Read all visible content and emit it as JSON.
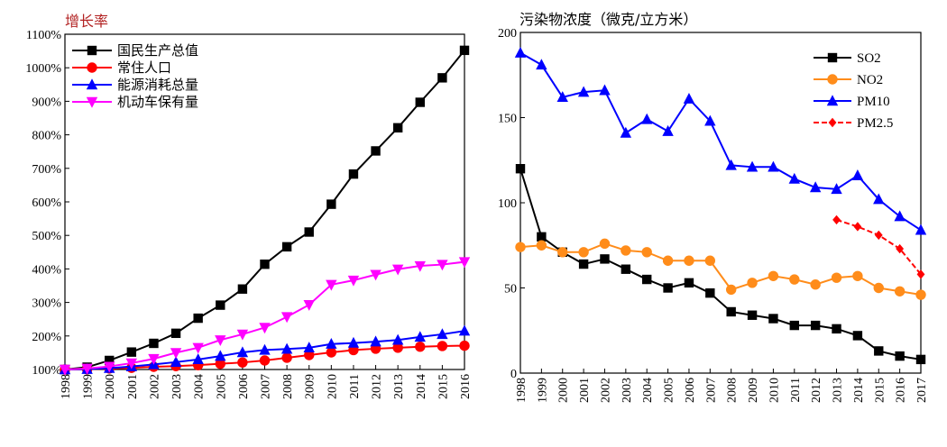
{
  "chart_data": [
    {
      "type": "line",
      "title": "增长率",
      "ylabel": "",
      "xlabel": "",
      "ylim": [
        100,
        1100
      ],
      "yticks": [
        "100%",
        "200%",
        "300%",
        "400%",
        "500%",
        "600%",
        "700%",
        "800%",
        "900%",
        "1000%",
        "1100%"
      ],
      "x": [
        "1998",
        "1999",
        "2000",
        "2001",
        "2002",
        "2003",
        "2004",
        "2005",
        "2006",
        "2007",
        "2008",
        "2009",
        "2010",
        "2011",
        "2012",
        "2013",
        "2014",
        "2015",
        "2016"
      ],
      "legend_position": "top-left",
      "series": [
        {
          "name": "国民生产总值",
          "color": "#000000",
          "marker": "square",
          "values": [
            100,
            107,
            127,
            152,
            178,
            208,
            253,
            292,
            340,
            414,
            466,
            510,
            593,
            683,
            752,
            821,
            897,
            970,
            1052
          ]
        },
        {
          "name": "常住人口",
          "color": "#ff0000",
          "marker": "circle",
          "values": [
            100,
            101,
            103,
            105,
            108,
            110,
            113,
            117,
            121,
            127,
            135,
            143,
            151,
            158,
            162,
            165,
            168,
            170,
            171
          ]
        },
        {
          "name": "能源消耗总量",
          "color": "#0000ff",
          "marker": "triangle-up",
          "values": [
            100,
            101,
            104,
            109,
            115,
            122,
            130,
            140,
            151,
            158,
            161,
            165,
            176,
            179,
            183,
            188,
            197,
            205,
            215
          ]
        },
        {
          "name": "机动车保有量",
          "color": "#ff00ff",
          "marker": "triangle-down",
          "values": [
            100,
            103,
            109,
            119,
            132,
            150,
            165,
            188,
            205,
            225,
            257,
            293,
            353,
            366,
            383,
            399,
            409,
            413,
            421
          ]
        }
      ]
    },
    {
      "type": "line",
      "title": "污染物浓度（微克/立方米）",
      "ylabel": "",
      "xlabel": "",
      "ylim": [
        0,
        200
      ],
      "yticks": [
        "0",
        "50",
        "100",
        "150",
        "200"
      ],
      "x": [
        "1998",
        "1999",
        "2000",
        "2001",
        "2002",
        "2003",
        "2004",
        "2005",
        "2006",
        "2007",
        "2008",
        "2009",
        "2010",
        "2011",
        "2012",
        "2013",
        "2014",
        "2015",
        "2016",
        "2017"
      ],
      "legend_position": "top-right",
      "series": [
        {
          "name": "SO2",
          "color": "#000000",
          "marker": "square",
          "values": [
            120,
            80,
            71,
            64,
            67,
            61,
            55,
            50,
            53,
            47,
            36,
            34,
            32,
            28,
            28,
            26,
            22,
            13,
            10,
            8
          ]
        },
        {
          "name": "NO2",
          "color": "#ff8c1a",
          "marker": "circle",
          "values": [
            74,
            75,
            71,
            71,
            76,
            72,
            71,
            66,
            66,
            66,
            49,
            53,
            57,
            55,
            52,
            56,
            57,
            50,
            48,
            46
          ]
        },
        {
          "name": "PM10",
          "color": "#0000ff",
          "marker": "triangle-up",
          "values": [
            188,
            181,
            162,
            165,
            166,
            141,
            149,
            142,
            161,
            148,
            122,
            121,
            121,
            114,
            109,
            108,
            116,
            102,
            92,
            84
          ]
        },
        {
          "name": "PM2.5",
          "color": "#ff0000",
          "marker": "diamond",
          "values": [
            null,
            null,
            null,
            null,
            null,
            null,
            null,
            null,
            null,
            null,
            null,
            null,
            null,
            null,
            null,
            90,
            86,
            81,
            73,
            58
          ]
        }
      ]
    }
  ]
}
